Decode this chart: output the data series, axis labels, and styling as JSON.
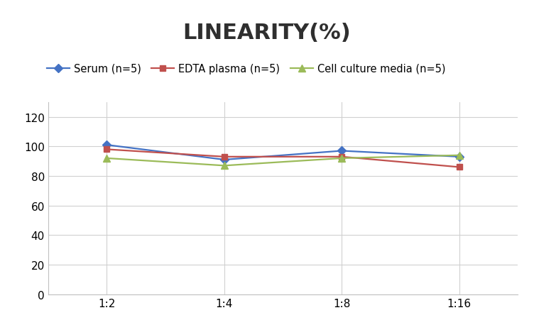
{
  "title": "LINEARITY(%)",
  "title_fontsize": 22,
  "title_fontweight": "bold",
  "x_labels": [
    "1:2",
    "1:4",
    "1:8",
    "1:16"
  ],
  "x_positions": [
    0,
    1,
    2,
    3
  ],
  "series": [
    {
      "label": "Serum (n=5)",
      "values": [
        101,
        91,
        97,
        93
      ],
      "color": "#4472C4",
      "marker": "D",
      "marker_size": 6,
      "linewidth": 1.6
    },
    {
      "label": "EDTA plasma (n=5)",
      "values": [
        98,
        93,
        93,
        86
      ],
      "color": "#C0504D",
      "marker": "s",
      "marker_size": 6,
      "linewidth": 1.6
    },
    {
      "label": "Cell culture media (n=5)",
      "values": [
        92,
        87,
        92,
        94
      ],
      "color": "#9BBB59",
      "marker": "^",
      "marker_size": 7,
      "linewidth": 1.6
    }
  ],
  "ylim": [
    0,
    130
  ],
  "yticks": [
    0,
    20,
    40,
    60,
    80,
    100,
    120
  ],
  "grid_color": "#D0D0D0",
  "background_color": "#FFFFFF",
  "legend_fontsize": 10.5,
  "axis_fontsize": 11
}
